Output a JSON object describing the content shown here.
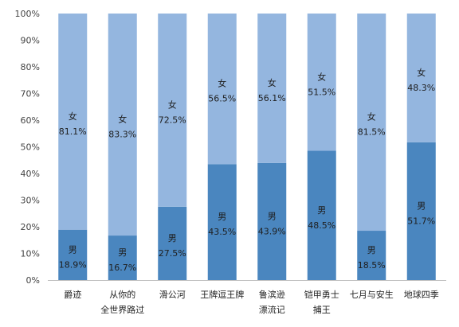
{
  "chart_data": {
    "type": "bar",
    "stacked": true,
    "percent": true,
    "categories": [
      [
        "爵迹"
      ],
      [
        "从你的",
        "全世界路过"
      ],
      [
        "滑公河"
      ],
      [
        "王牌逗王牌"
      ],
      [
        "鲁滨逊",
        "漂流记"
      ],
      [
        "铠甲勇士",
        "捕王"
      ],
      [
        "七月与安生"
      ],
      [
        "地球四季"
      ]
    ],
    "series": [
      {
        "name": "男",
        "color": "#4a86bf",
        "values": [
          18.9,
          16.7,
          27.5,
          43.5,
          43.9,
          48.5,
          18.5,
          51.7
        ],
        "labels": [
          "18.9%",
          "16.7%",
          "27.5%",
          "43.5%",
          "43.9%",
          "48.5%",
          "18.5%",
          "51.7%"
        ]
      },
      {
        "name": "女",
        "color": "#94b6df",
        "values": [
          81.1,
          83.3,
          72.5,
          56.5,
          56.1,
          51.5,
          81.5,
          48.3
        ],
        "labels": [
          "81.1%",
          "83.3%",
          "72.5%",
          "56.5%",
          "56.1%",
          "51.5%",
          "81.5%",
          "48.3%"
        ]
      }
    ],
    "yticks": [
      "0%",
      "10%",
      "20%",
      "30%",
      "40%",
      "50%",
      "60%",
      "70%",
      "80%",
      "90%",
      "100%"
    ],
    "ylim": [
      0,
      100
    ],
    "grid": false,
    "legend": "none"
  }
}
